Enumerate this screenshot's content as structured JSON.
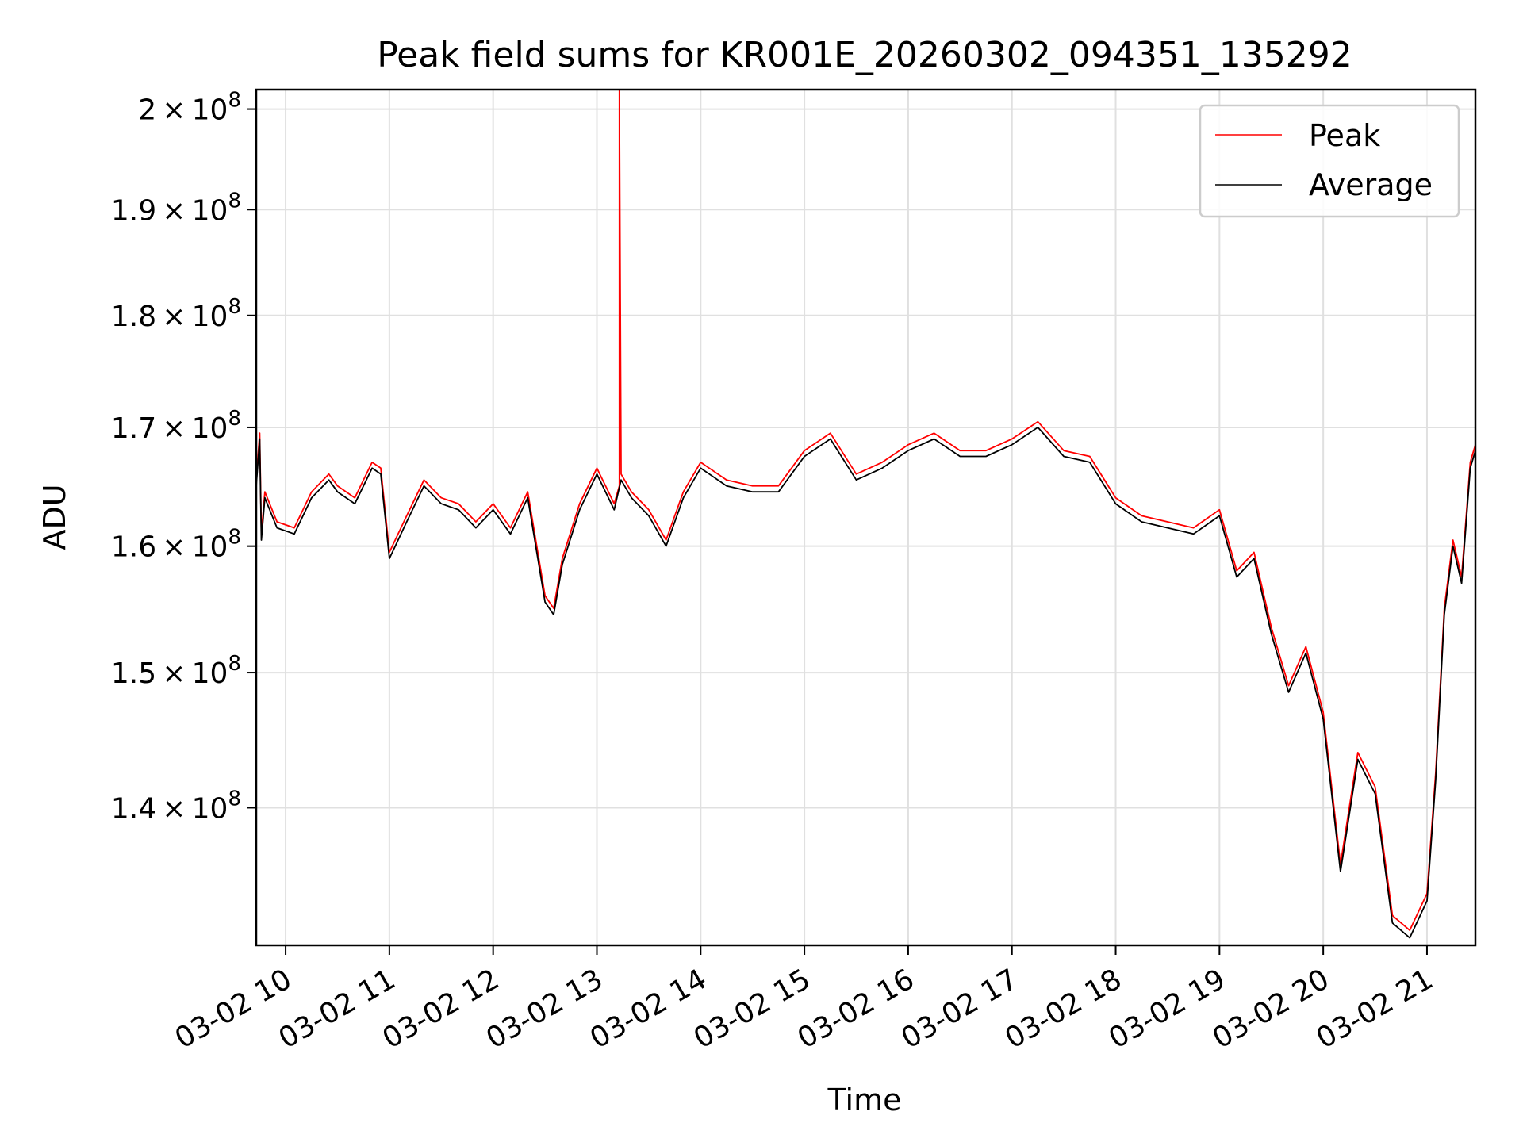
{
  "chart_data": {
    "type": "line",
    "title": "Peak field sums for KR001E_20260302_094351_135292",
    "xlabel": "Time",
    "ylabel": "ADU",
    "y_scale": "log",
    "ylim": [
      130500000,
      202000000
    ],
    "xlim": [
      "2026-03-02 09:43",
      "2026-03-02 21:28"
    ],
    "grid": true,
    "legend_position": "upper right",
    "x_ticks": [
      {
        "value": "2026-03-02 10:00",
        "label": "03-02 10"
      },
      {
        "value": "2026-03-02 11:00",
        "label": "03-02 11"
      },
      {
        "value": "2026-03-02 12:00",
        "label": "03-02 12"
      },
      {
        "value": "2026-03-02 13:00",
        "label": "03-02 13"
      },
      {
        "value": "2026-03-02 14:00",
        "label": "03-02 14"
      },
      {
        "value": "2026-03-02 15:00",
        "label": "03-02 15"
      },
      {
        "value": "2026-03-02 16:00",
        "label": "03-02 16"
      },
      {
        "value": "2026-03-02 17:00",
        "label": "03-02 17"
      },
      {
        "value": "2026-03-02 18:00",
        "label": "03-02 18"
      },
      {
        "value": "2026-03-02 19:00",
        "label": "03-02 19"
      },
      {
        "value": "2026-03-02 20:00",
        "label": "03-02 20"
      },
      {
        "value": "2026-03-02 21:00",
        "label": "03-02 21"
      }
    ],
    "y_ticks": [
      {
        "value": 140000000,
        "mantissa": "1.4",
        "exponent": "8"
      },
      {
        "value": 150000000,
        "mantissa": "1.5",
        "exponent": "8"
      },
      {
        "value": 160000000,
        "mantissa": "1.6",
        "exponent": "8"
      },
      {
        "value": 170000000,
        "mantissa": "1.7",
        "exponent": "8"
      },
      {
        "value": 180000000,
        "mantissa": "1.8",
        "exponent": "8"
      },
      {
        "value": 190000000,
        "mantissa": "1.9",
        "exponent": "8"
      },
      {
        "value": 200000000,
        "mantissa": "2",
        "exponent": "8"
      }
    ],
    "series": [
      {
        "name": "Peak",
        "color": "#ff0000",
        "x": [
          "2026-03-02 09:43",
          "2026-03-02 09:45",
          "2026-03-02 09:46",
          "2026-03-02 09:48",
          "2026-03-02 09:55",
          "2026-03-02 10:05",
          "2026-03-02 10:15",
          "2026-03-02 10:25",
          "2026-03-02 10:30",
          "2026-03-02 10:40",
          "2026-03-02 10:50",
          "2026-03-02 10:55",
          "2026-03-02 11:00",
          "2026-03-02 11:10",
          "2026-03-02 11:20",
          "2026-03-02 11:30",
          "2026-03-02 11:40",
          "2026-03-02 11:50",
          "2026-03-02 12:00",
          "2026-03-02 12:10",
          "2026-03-02 12:20",
          "2026-03-02 12:30",
          "2026-03-02 12:35",
          "2026-03-02 12:40",
          "2026-03-02 12:50",
          "2026-03-02 13:00",
          "2026-03-02 13:10",
          "2026-03-02 13:13",
          "2026-03-02 13:13",
          "2026-03-02 13:14",
          "2026-03-02 13:20",
          "2026-03-02 13:30",
          "2026-03-02 13:40",
          "2026-03-02 13:50",
          "2026-03-02 14:00",
          "2026-03-02 14:15",
          "2026-03-02 14:30",
          "2026-03-02 14:45",
          "2026-03-02 15:00",
          "2026-03-02 15:15",
          "2026-03-02 15:30",
          "2026-03-02 15:45",
          "2026-03-02 16:00",
          "2026-03-02 16:15",
          "2026-03-02 16:30",
          "2026-03-02 16:45",
          "2026-03-02 17:00",
          "2026-03-02 17:15",
          "2026-03-02 17:30",
          "2026-03-02 17:45",
          "2026-03-02 18:00",
          "2026-03-02 18:15",
          "2026-03-02 18:30",
          "2026-03-02 18:45",
          "2026-03-02 19:00",
          "2026-03-02 19:10",
          "2026-03-02 19:20",
          "2026-03-02 19:30",
          "2026-03-02 19:40",
          "2026-03-02 19:50",
          "2026-03-02 20:00",
          "2026-03-02 20:10",
          "2026-03-02 20:20",
          "2026-03-02 20:30",
          "2026-03-02 20:40",
          "2026-03-02 20:50",
          "2026-03-02 21:00",
          "2026-03-02 21:05",
          "2026-03-02 21:10",
          "2026-03-02 21:15",
          "2026-03-02 21:20",
          "2026-03-02 21:25",
          "2026-03-02 21:28"
        ],
        "values": [
          165500000,
          169500000,
          161000000,
          164500000,
          162000000,
          161500000,
          164500000,
          166000000,
          165000000,
          164000000,
          167000000,
          166500000,
          159500000,
          162500000,
          165500000,
          164000000,
          163500000,
          162000000,
          163500000,
          161500000,
          164500000,
          156000000,
          155000000,
          159000000,
          163500000,
          166500000,
          163500000,
          165000000,
          202000000,
          166000000,
          164500000,
          163000000,
          160500000,
          164500000,
          167000000,
          165500000,
          165000000,
          165000000,
          168000000,
          169500000,
          166000000,
          167000000,
          168500000,
          169500000,
          168000000,
          168000000,
          169000000,
          170500000,
          168000000,
          167500000,
          164000000,
          162500000,
          162000000,
          161500000,
          163000000,
          158000000,
          159500000,
          153500000,
          149000000,
          152000000,
          147000000,
          136000000,
          144000000,
          141500000,
          132500000,
          131500000,
          134000000,
          142500000,
          155000000,
          160500000,
          157500000,
          167000000,
          168500000
        ]
      },
      {
        "name": "Average",
        "color": "#000000",
        "x": [
          "2026-03-02 09:43",
          "2026-03-02 09:45",
          "2026-03-02 09:46",
          "2026-03-02 09:48",
          "2026-03-02 09:55",
          "2026-03-02 10:05",
          "2026-03-02 10:15",
          "2026-03-02 10:25",
          "2026-03-02 10:30",
          "2026-03-02 10:40",
          "2026-03-02 10:50",
          "2026-03-02 10:55",
          "2026-03-02 11:00",
          "2026-03-02 11:10",
          "2026-03-02 11:20",
          "2026-03-02 11:30",
          "2026-03-02 11:40",
          "2026-03-02 11:50",
          "2026-03-02 12:00",
          "2026-03-02 12:10",
          "2026-03-02 12:20",
          "2026-03-02 12:30",
          "2026-03-02 12:35",
          "2026-03-02 12:40",
          "2026-03-02 12:50",
          "2026-03-02 13:00",
          "2026-03-02 13:10",
          "2026-03-02 13:14",
          "2026-03-02 13:20",
          "2026-03-02 13:30",
          "2026-03-02 13:40",
          "2026-03-02 13:50",
          "2026-03-02 14:00",
          "2026-03-02 14:15",
          "2026-03-02 14:30",
          "2026-03-02 14:45",
          "2026-03-02 15:00",
          "2026-03-02 15:15",
          "2026-03-02 15:30",
          "2026-03-02 15:45",
          "2026-03-02 16:00",
          "2026-03-02 16:15",
          "2026-03-02 16:30",
          "2026-03-02 16:45",
          "2026-03-02 17:00",
          "2026-03-02 17:15",
          "2026-03-02 17:30",
          "2026-03-02 17:45",
          "2026-03-02 18:00",
          "2026-03-02 18:15",
          "2026-03-02 18:30",
          "2026-03-02 18:45",
          "2026-03-02 19:00",
          "2026-03-02 19:10",
          "2026-03-02 19:20",
          "2026-03-02 19:30",
          "2026-03-02 19:40",
          "2026-03-02 19:50",
          "2026-03-02 20:00",
          "2026-03-02 20:10",
          "2026-03-02 20:20",
          "2026-03-02 20:30",
          "2026-03-02 20:40",
          "2026-03-02 20:50",
          "2026-03-02 21:00",
          "2026-03-02 21:05",
          "2026-03-02 21:10",
          "2026-03-02 21:15",
          "2026-03-02 21:20",
          "2026-03-02 21:25",
          "2026-03-02 21:28"
        ],
        "values": [
          165000000,
          169000000,
          160500000,
          164000000,
          161500000,
          161000000,
          164000000,
          165500000,
          164500000,
          163500000,
          166500000,
          166000000,
          159000000,
          162000000,
          165000000,
          163500000,
          163000000,
          161500000,
          163000000,
          161000000,
          164000000,
          155500000,
          154500000,
          158500000,
          163000000,
          166000000,
          163000000,
          165500000,
          164000000,
          162500000,
          160000000,
          164000000,
          166500000,
          165000000,
          164500000,
          164500000,
          167500000,
          169000000,
          165500000,
          166500000,
          168000000,
          169000000,
          167500000,
          167500000,
          168500000,
          170000000,
          167500000,
          167000000,
          163500000,
          162000000,
          161500000,
          161000000,
          162500000,
          157500000,
          159000000,
          153000000,
          148500000,
          151500000,
          146500000,
          135500000,
          143500000,
          141000000,
          132000000,
          131000000,
          133500000,
          142000000,
          154500000,
          160000000,
          157000000,
          166500000,
          168000000
        ]
      }
    ]
  }
}
